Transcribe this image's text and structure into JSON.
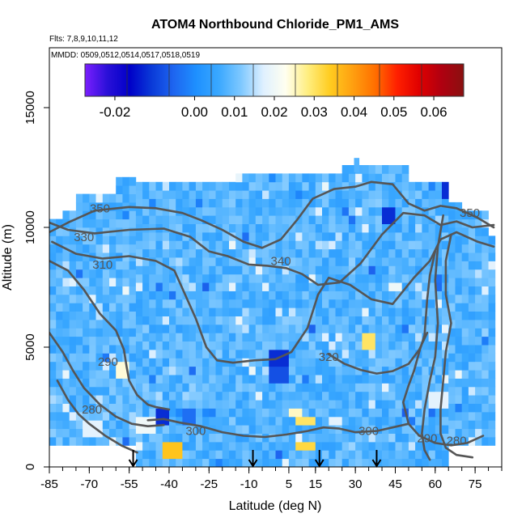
{
  "chart_data": {
    "type": "heatmap",
    "title": "ATOM4 Northbound Chloride_PM1_AMS",
    "flights_label": "Flts: 7,8,9,10,11,12",
    "dates_label": "MMDD: 0509,0512,0514,0517,0518,0519",
    "xlabel": "Latitude (deg N)",
    "ylabel": "Altitude (m)",
    "xlim": [
      -85,
      85
    ],
    "ylim": [
      0,
      17500
    ],
    "x_ticks": [
      -85,
      -70,
      -55,
      -40,
      -25,
      -10,
      5,
      15,
      30,
      45,
      60,
      75
    ],
    "x_tick_labels": [
      "-85",
      "-70",
      "-55",
      "-40",
      "-25",
      "-10",
      "5",
      "15",
      "30",
      "45",
      "60",
      "75"
    ],
    "y_ticks": [
      0,
      5000,
      10000,
      15000
    ],
    "y_tick_labels": [
      "0",
      "5000",
      "10000",
      "15000"
    ],
    "colorbar": {
      "range": [
        -0.0275,
        0.0675
      ],
      "ticks": [
        -0.02,
        0,
        0.01,
        0.02,
        0.03,
        0.04,
        0.05,
        0.06
      ],
      "tick_labels": [
        "-0.02",
        "0.00",
        "0.01",
        "0.02",
        "0.03",
        "0.04",
        "0.05",
        "0.06"
      ],
      "colors": [
        "#7b1fff",
        "#2a10d8",
        "#0000c8",
        "#0a3ad8",
        "#1e66f0",
        "#1e90ff",
        "#3aa8ff",
        "#7ec8ff",
        "#dff0ff",
        "#fffff0",
        "#ffee80",
        "#ffcc20",
        "#ffa010",
        "#ff7000",
        "#ff2000",
        "#e00000",
        "#b00010",
        "#8a1010"
      ]
    },
    "background_value": 0.008,
    "grid": false,
    "anomalies": [
      {
        "lat": 64,
        "alt": 11400,
        "value": -0.012
      },
      {
        "lat": -44,
        "alt": 1950,
        "value": -0.012
      },
      {
        "lat": -34,
        "alt": 1950,
        "value": -0.004
      },
      {
        "lat": 0,
        "alt": 4450,
        "value": -0.012
      },
      {
        "lat": 0,
        "alt": 3800,
        "value": -0.008
      },
      {
        "lat": 42,
        "alt": 10400,
        "value": -0.012
      },
      {
        "lat": 10,
        "alt": 1750,
        "value": 0.03
      },
      {
        "lat": 6,
        "alt": 2100,
        "value": 0.025
      },
      {
        "lat": 34,
        "alt": 4950,
        "value": 0.03
      },
      {
        "lat": -58,
        "alt": 3800,
        "value": 0.024
      },
      {
        "lat": -50,
        "alt": 1700,
        "value": 0.02
      },
      {
        "lat": 44,
        "alt": 7350,
        "value": 0.02
      },
      {
        "lat": -70,
        "alt": 1350,
        "value": 0.018
      },
      {
        "lat": -40,
        "alt": 600,
        "value": 0.035
      },
      {
        "lat": 10,
        "alt": 700,
        "value": 0.032
      },
      {
        "lat": 22,
        "alt": 1750,
        "value": 0.018
      },
      {
        "lat": 60,
        "alt": 2500,
        "value": 0.018
      }
    ],
    "contour_labels": [
      {
        "label": "350",
        "lat": -66,
        "alt": 10800
      },
      {
        "label": "330",
        "lat": -72,
        "alt": 9600
      },
      {
        "label": "310",
        "lat": -65,
        "alt": 8450
      },
      {
        "label": "340",
        "lat": 2,
        "alt": 8600
      },
      {
        "label": "350",
        "lat": 73,
        "alt": 10600
      },
      {
        "label": "320",
        "lat": 20,
        "alt": 4600
      },
      {
        "label": "290",
        "lat": -63,
        "alt": 4400
      },
      {
        "label": "280",
        "lat": -69,
        "alt": 2400
      },
      {
        "label": "300",
        "lat": -30,
        "alt": 1500
      },
      {
        "label": "300",
        "lat": 35,
        "alt": 1500
      },
      {
        "label": "290",
        "lat": 57,
        "alt": 1200
      },
      {
        "label": "280",
        "lat": 68,
        "alt": 1100
      }
    ],
    "markers": [
      -53.5,
      -8.5,
      16.5,
      38
    ],
    "marker_type": "arrow-down"
  }
}
